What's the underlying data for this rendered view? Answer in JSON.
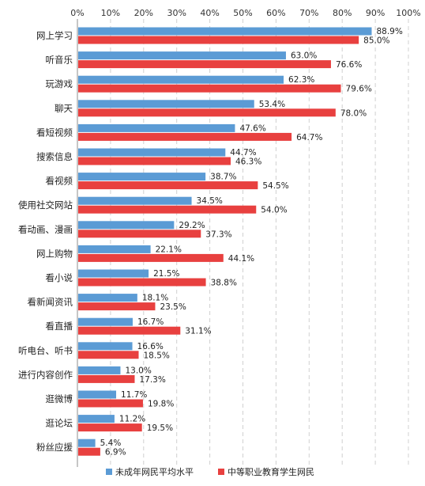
{
  "chart_data": {
    "type": "bar",
    "orientation": "horizontal",
    "categories": [
      "网上学习",
      "听音乐",
      "玩游戏",
      "聊天",
      "看短视频",
      "搜索信息",
      "看视频",
      "使用社交网站",
      "看动画、漫画",
      "网上购物",
      "看小说",
      "看新闻资讯",
      "看直播",
      "听电台、听书",
      "进行内容创作",
      "逛微博",
      "逛论坛",
      "粉丝应援"
    ],
    "series": [
      {
        "name": "未成年网民平均水平",
        "color": "#5B9BD5",
        "values": [
          88.9,
          63.0,
          62.3,
          53.4,
          47.6,
          44.7,
          38.7,
          34.5,
          29.2,
          22.1,
          21.5,
          18.1,
          16.7,
          16.6,
          13.0,
          11.7,
          11.2,
          5.4
        ],
        "labels": [
          "88.9%",
          "63.0%",
          "62.3%",
          "53.4%",
          "47.6%",
          "44.7%",
          "38.7%",
          "34.5%",
          "29.2%",
          "22.1%",
          "21.5%",
          "18.1%",
          "16.7%",
          "16.6%",
          "13.0%",
          "11.7%",
          "11.2%",
          "5.4%"
        ]
      },
      {
        "name": "中等职业教育学生网民",
        "color": "#E8403F",
        "values": [
          85.0,
          76.6,
          79.6,
          78.0,
          64.7,
          46.3,
          54.5,
          54.0,
          37.3,
          44.1,
          38.8,
          23.5,
          31.1,
          18.5,
          17.3,
          19.8,
          19.5,
          6.9
        ],
        "labels": [
          "85.0%",
          "76.6%",
          "79.6%",
          "78.0%",
          "64.7%",
          "46.3%",
          "54.5%",
          "54.0%",
          "37.3%",
          "44.1%",
          "38.8%",
          "23.5%",
          "31.1%",
          "18.5%",
          "17.3%",
          "19.8%",
          "19.5%",
          "6.9%"
        ]
      }
    ],
    "x_ticks": [
      "0%",
      "10%",
      "20%",
      "30%",
      "40%",
      "50%",
      "60%",
      "70%",
      "80%",
      "90%",
      "100%"
    ],
    "xlim": [
      0,
      100
    ],
    "axis_position": "top",
    "grid": true,
    "grid_style": "dashed-vertical",
    "legend_position": "bottom",
    "title": "",
    "xlabel": "",
    "ylabel": ""
  }
}
